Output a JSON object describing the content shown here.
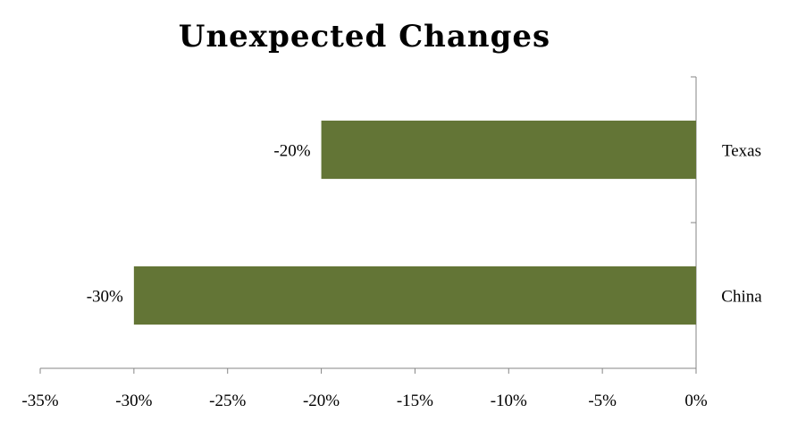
{
  "chart_data": {
    "type": "bar",
    "orientation": "horizontal",
    "title": "Unexpected Changes",
    "xlabel": "",
    "ylabel": "",
    "categories": [
      "Texas",
      "China"
    ],
    "series": [
      {
        "values": [
          -20,
          -30
        ],
        "data_labels": [
          "-20%",
          "-30%"
        ],
        "color": "#637536"
      }
    ],
    "xlim": [
      -35,
      0
    ],
    "x_ticks": [
      -35,
      -30,
      -25,
      -20,
      -15,
      -10,
      -5,
      0
    ],
    "x_tick_labels": [
      "-35%",
      "-30%",
      "-25%",
      "-20%",
      "-15%",
      "-10%",
      "-5%",
      "0%"
    ],
    "category_axis_position": "right",
    "grid": false,
    "legend": "none",
    "axis_color": "#868686"
  }
}
